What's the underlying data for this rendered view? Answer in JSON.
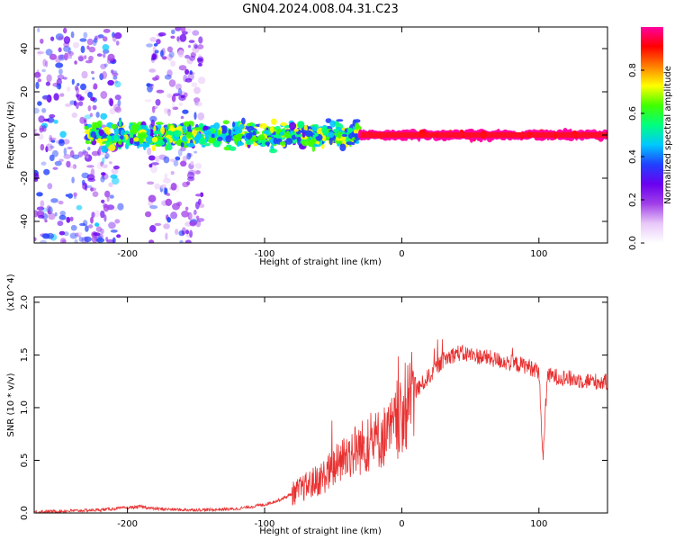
{
  "title": "GN04.2024.008.04.31.C23",
  "chart_data": [
    {
      "type": "heatmap",
      "xlabel": "Height of straight line (km)",
      "ylabel": "Frequency (Hz)",
      "xlim": [
        -268,
        150
      ],
      "ylim": [
        -50,
        50
      ],
      "xticks": [
        "-200",
        "-100",
        "0",
        "100"
      ],
      "xtick_values": [
        -200,
        -100,
        0,
        100
      ],
      "yticks": [
        "-40",
        "-20",
        "0",
        "20",
        "40"
      ],
      "ytick_values": [
        -40,
        -20,
        0,
        20,
        40
      ],
      "colorbar": {
        "label": "Normalized spectral amplitude",
        "range": [
          0,
          1
        ],
        "ticks": [
          "0.0",
          "0.2",
          "0.4",
          "0.6",
          "0.8"
        ],
        "tick_values": [
          0.0,
          0.2,
          0.4,
          0.6,
          0.8
        ],
        "colormap": [
          "#ffffff",
          "#e8c8f8",
          "#a040e8",
          "#6a00f0",
          "#2040ff",
          "#00c8ff",
          "#00ff80",
          "#40ff00",
          "#ffff00",
          "#ff8000",
          "#ff0000",
          "#ff00a0"
        ]
      },
      "regions": [
        {
          "x_range": [
            -268,
            -205
          ],
          "f_halfwidth": 50,
          "amplitude": 0.12,
          "note": "broadband purple noise"
        },
        {
          "x_range": [
            -185,
            -145
          ],
          "f_halfwidth": 50,
          "amplitude": 0.08
        },
        {
          "x_range": [
            -230,
            -30
          ],
          "f_halfwidth": 8,
          "amplitude": 0.3
        },
        {
          "x_range": [
            -30,
            150
          ],
          "f_halfwidth": 2,
          "amplitude": 0.9,
          "note": "narrow red line near 0 Hz"
        }
      ],
      "grid": false
    },
    {
      "type": "line",
      "xlabel": "Height of straight line (km)",
      "ylabel": "SNR (10 * v/v)",
      "y_multiplier": "(x10^4)",
      "xlim": [
        -268,
        150
      ],
      "ylim": [
        0,
        2.05
      ],
      "xticks": [
        "-200",
        "-100",
        "0",
        "100"
      ],
      "xtick_values": [
        -200,
        -100,
        0,
        100
      ],
      "yticks": [
        "0.0",
        "0.5",
        "1.0",
        "1.5",
        "2.0"
      ],
      "ytick_values": [
        0.0,
        0.5,
        1.0,
        1.5,
        2.0
      ],
      "line_color": "#e83030",
      "x": [
        -268,
        -240,
        -220,
        -200,
        -190,
        -180,
        -160,
        -140,
        -120,
        -110,
        -100,
        -90,
        -80,
        -70,
        -60,
        -50,
        -40,
        -30,
        -20,
        -10,
        0,
        10,
        20,
        30,
        40,
        50,
        60,
        70,
        80,
        90,
        100,
        103,
        106,
        110,
        120,
        130,
        140,
        150
      ],
      "y": [
        0.01,
        0.02,
        0.03,
        0.05,
        0.06,
        0.04,
        0.03,
        0.03,
        0.04,
        0.06,
        0.08,
        0.12,
        0.18,
        0.25,
        0.32,
        0.42,
        0.55,
        0.62,
        0.68,
        0.75,
        0.9,
        1.15,
        1.3,
        1.45,
        1.52,
        1.5,
        1.48,
        1.45,
        1.42,
        1.4,
        1.35,
        0.5,
        1.3,
        1.3,
        1.28,
        1.26,
        1.25,
        1.24
      ],
      "grid": false
    }
  ]
}
